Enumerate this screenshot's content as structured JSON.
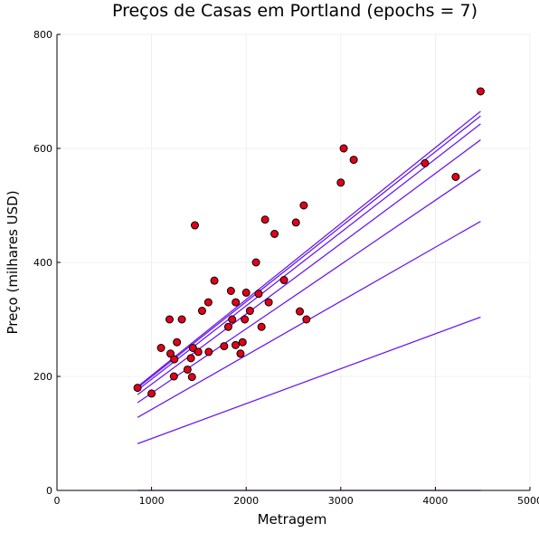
{
  "chart_data": {
    "type": "scatter",
    "title": "Preços de Casas em Portland (epochs = 7)",
    "xlabel": "Metragem",
    "ylabel": "Preço (milhares USD)",
    "xlim": [
      0,
      5000
    ],
    "ylim": [
      0,
      800
    ],
    "xticks": [
      0,
      1000,
      2000,
      3000,
      4000,
      5000
    ],
    "yticks": [
      0,
      200,
      400,
      600,
      800
    ],
    "grid": true,
    "legend": "none",
    "colors": {
      "point_fill": "#e3001b",
      "point_stroke": "#000000",
      "line": "#6a1cf0",
      "grid": "#ececec"
    },
    "points": [
      {
        "x": 852,
        "y": 180
      },
      {
        "x": 1000,
        "y": 170
      },
      {
        "x": 1100,
        "y": 250
      },
      {
        "x": 1190,
        "y": 300
      },
      {
        "x": 1200,
        "y": 240
      },
      {
        "x": 1236,
        "y": 200
      },
      {
        "x": 1240,
        "y": 230
      },
      {
        "x": 1268,
        "y": 260
      },
      {
        "x": 1320,
        "y": 300
      },
      {
        "x": 1380,
        "y": 212
      },
      {
        "x": 1416,
        "y": 232
      },
      {
        "x": 1427,
        "y": 199
      },
      {
        "x": 1437,
        "y": 250
      },
      {
        "x": 1458,
        "y": 465
      },
      {
        "x": 1494,
        "y": 243
      },
      {
        "x": 1534,
        "y": 315
      },
      {
        "x": 1600,
        "y": 330
      },
      {
        "x": 1604,
        "y": 243
      },
      {
        "x": 1664,
        "y": 368
      },
      {
        "x": 1767,
        "y": 253
      },
      {
        "x": 1811,
        "y": 287
      },
      {
        "x": 1839,
        "y": 350
      },
      {
        "x": 1852,
        "y": 300
      },
      {
        "x": 1888,
        "y": 255
      },
      {
        "x": 1890,
        "y": 330
      },
      {
        "x": 1940,
        "y": 240
      },
      {
        "x": 1962,
        "y": 260
      },
      {
        "x": 1985,
        "y": 300
      },
      {
        "x": 2000,
        "y": 347
      },
      {
        "x": 2040,
        "y": 315
      },
      {
        "x": 2104,
        "y": 400
      },
      {
        "x": 2132,
        "y": 345
      },
      {
        "x": 2162,
        "y": 287
      },
      {
        "x": 2200,
        "y": 475
      },
      {
        "x": 2238,
        "y": 330
      },
      {
        "x": 2300,
        "y": 450
      },
      {
        "x": 2400,
        "y": 369
      },
      {
        "x": 2526,
        "y": 470
      },
      {
        "x": 2567,
        "y": 314
      },
      {
        "x": 2609,
        "y": 500
      },
      {
        "x": 2637,
        "y": 300
      },
      {
        "x": 3000,
        "y": 540
      },
      {
        "x": 3031,
        "y": 600
      },
      {
        "x": 3137,
        "y": 580
      },
      {
        "x": 3890,
        "y": 574
      },
      {
        "x": 4215,
        "y": 550
      },
      {
        "x": 4478,
        "y": 700
      }
    ],
    "lines": [
      {
        "x": [
          852,
          4478
        ],
        "y": [
          0,
          0
        ]
      },
      {
        "x": [
          852,
          4478
        ],
        "y": [
          82,
          304
        ]
      },
      {
        "x": [
          852,
          4478
        ],
        "y": [
          128,
          472
        ]
      },
      {
        "x": [
          852,
          4478
        ],
        "y": [
          154,
          563
        ]
      },
      {
        "x": [
          852,
          4478
        ],
        "y": [
          168,
          615
        ]
      },
      {
        "x": [
          852,
          4478
        ],
        "y": [
          176,
          643
        ]
      },
      {
        "x": [
          852,
          4478
        ],
        "y": [
          180,
          657
        ]
      },
      {
        "x": [
          852,
          4478
        ],
        "y": [
          182,
          665
        ]
      }
    ]
  }
}
